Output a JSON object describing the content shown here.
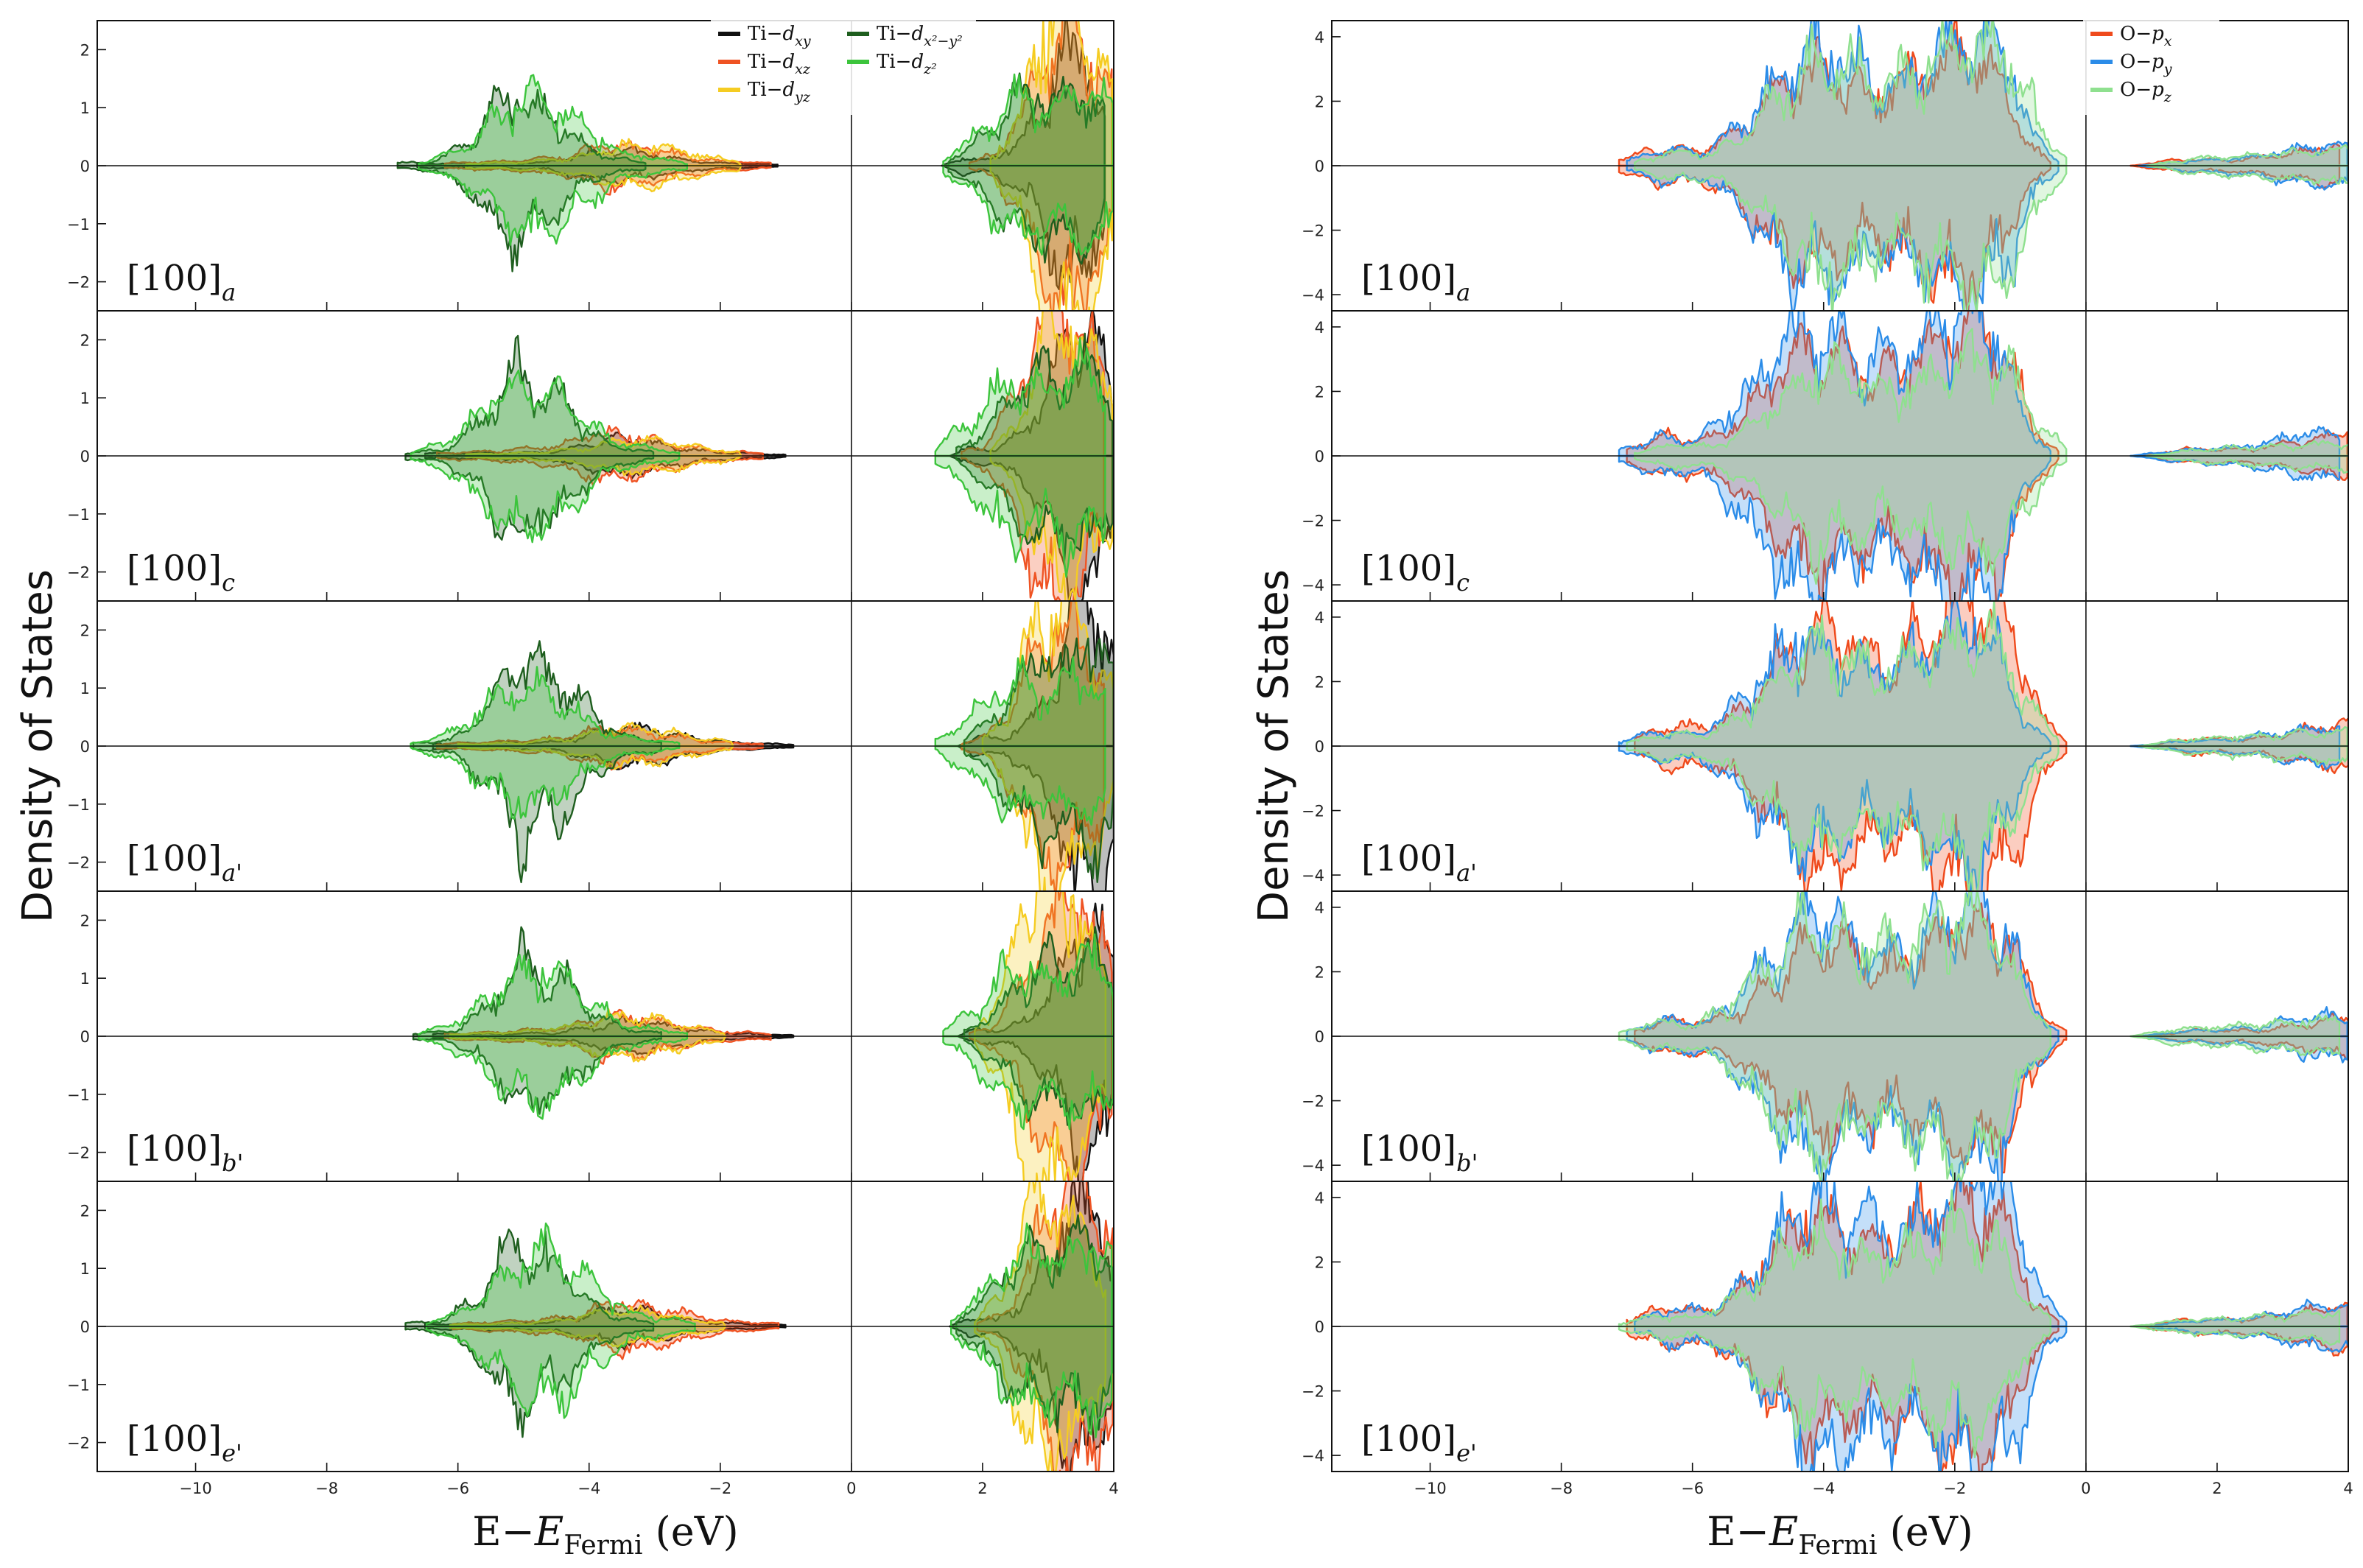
{
  "chart_data": [
    {
      "type": "area",
      "title": "",
      "xlabel": "E−E_Fermi (eV)",
      "ylabel": "Density of States",
      "xlim": [
        -11.5,
        4
      ],
      "ylim": [
        -2.5,
        2.5
      ],
      "xticks": [
        -10,
        -8,
        -6,
        -4,
        -2,
        0,
        2,
        4
      ],
      "yticks": [
        -2,
        -1,
        0,
        1,
        2
      ],
      "legend_position": "top-right",
      "panels": [
        {
          "label": "[100]",
          "sub": "a"
        },
        {
          "label": "[100]",
          "sub": "c"
        },
        {
          "label": "[100]",
          "sub": "a'"
        },
        {
          "label": "[100]",
          "sub": "b'"
        },
        {
          "label": "[100]",
          "sub": "e'"
        }
      ],
      "series": [
        {
          "name": "Ti−d",
          "sub": "xy",
          "color": "#111111",
          "valence": [
            [
              -6.5,
              0.04
            ],
            [
              -5.5,
              0.05
            ],
            [
              -4.6,
              0.06
            ],
            [
              -4.0,
              0.2
            ],
            [
              -3.5,
              0.3
            ],
            [
              -3.0,
              0.22
            ],
            [
              -2.5,
              0.12
            ],
            [
              -2.0,
              0.06
            ],
            [
              -1.0,
              0.02
            ]
          ],
          "conduction": [
            [
              1.5,
              0.0
            ],
            [
              1.8,
              0.15
            ],
            [
              2.2,
              0.1
            ],
            [
              2.6,
              0.4
            ],
            [
              3.0,
              0.9
            ],
            [
              3.3,
              2.2
            ],
            [
              3.7,
              2.0
            ],
            [
              4.0,
              1.0
            ]
          ]
        },
        {
          "name": "Ti−d",
          "sub": "xz",
          "color": "#ef5323",
          "valence": [
            [
              -6.2,
              0.04
            ],
            [
              -5.2,
              0.08
            ],
            [
              -4.3,
              0.15
            ],
            [
              -3.8,
              0.35
            ],
            [
              -3.2,
              0.3
            ],
            [
              -2.6,
              0.18
            ],
            [
              -2.0,
              0.08
            ],
            [
              -1.2,
              0.04
            ]
          ],
          "conduction": [
            [
              1.8,
              0.05
            ],
            [
              2.2,
              0.2
            ],
            [
              2.6,
              0.9
            ],
            [
              3.0,
              2.0
            ],
            [
              3.4,
              2.4
            ],
            [
              3.7,
              1.6
            ],
            [
              4.0,
              1.2
            ]
          ]
        },
        {
          "name": "Ti−d",
          "sub": "yz",
          "color": "#f5cc22",
          "valence": [
            [
              -6.0,
              0.03
            ],
            [
              -5.0,
              0.06
            ],
            [
              -4.2,
              0.14
            ],
            [
              -3.6,
              0.3
            ],
            [
              -3.0,
              0.28
            ],
            [
              -2.4,
              0.15
            ],
            [
              -1.8,
              0.06
            ]
          ],
          "conduction": [
            [
              2.0,
              0.1
            ],
            [
              2.4,
              0.6
            ],
            [
              2.8,
              2.2
            ],
            [
              3.2,
              2.5
            ],
            [
              3.6,
              1.8
            ],
            [
              4.0,
              0.9
            ]
          ]
        },
        {
          "name": "Ti−d",
          "sub": "x²−y²",
          "color": "#1e5e1e",
          "valence": [
            [
              -6.8,
              0.05
            ],
            [
              -6.2,
              0.1
            ],
            [
              -5.6,
              0.6
            ],
            [
              -5.1,
              1.5
            ],
            [
              -4.8,
              1.0
            ],
            [
              -4.5,
              1.1
            ],
            [
              -4.1,
              0.5
            ],
            [
              -3.6,
              0.15
            ],
            [
              -3.0,
              0.06
            ]
          ],
          "conduction": [
            [
              1.6,
              0.1
            ],
            [
              2.0,
              0.4
            ],
            [
              2.4,
              0.9
            ],
            [
              2.8,
              1.4
            ],
            [
              3.2,
              1.2
            ],
            [
              3.6,
              1.6
            ],
            [
              4.0,
              0.9
            ]
          ]
        },
        {
          "name": "Ti−d",
          "sub": "z²",
          "color": "#3cc43c",
          "valence": [
            [
              -6.6,
              0.04
            ],
            [
              -5.9,
              0.3
            ],
            [
              -5.4,
              0.8
            ],
            [
              -4.9,
              1.1
            ],
            [
              -4.5,
              1.0
            ],
            [
              -4.0,
              0.6
            ],
            [
              -3.5,
              0.2
            ],
            [
              -2.5,
              0.05
            ]
          ],
          "conduction": [
            [
              1.4,
              0.1
            ],
            [
              1.9,
              0.5
            ],
            [
              2.3,
              1.0
            ],
            [
              2.7,
              1.2
            ],
            [
              3.1,
              0.9
            ],
            [
              3.5,
              1.3
            ],
            [
              4.0,
              1.0
            ]
          ]
        }
      ]
    },
    {
      "type": "area",
      "title": "",
      "xlabel": "E−E_Fermi (eV)",
      "ylabel": "Density of States",
      "xlim": [
        -11.5,
        4
      ],
      "ylim": [
        -4.5,
        4.5
      ],
      "xticks": [
        -10,
        -8,
        -6,
        -4,
        -2,
        0,
        2,
        4
      ],
      "yticks": [
        -4,
        -2,
        0,
        2,
        4
      ],
      "legend_position": "top-right",
      "panels": [
        {
          "label": "[100]",
          "sub": "a"
        },
        {
          "label": "[100]",
          "sub": "c"
        },
        {
          "label": "[100]",
          "sub": "a'"
        },
        {
          "label": "[100]",
          "sub": "b'"
        },
        {
          "label": "[100]",
          "sub": "e'"
        }
      ],
      "series": [
        {
          "name": "O−p",
          "sub": "x",
          "color": "#ef4a1c",
          "valence": [
            [
              -7.0,
              0.2
            ],
            [
              -6.4,
              0.6
            ],
            [
              -5.8,
              0.5
            ],
            [
              -5.3,
              1.0
            ],
            [
              -4.7,
              2.4
            ],
            [
              -4.2,
              3.4
            ],
            [
              -3.7,
              3.0
            ],
            [
              -3.2,
              2.4
            ],
            [
              -2.7,
              2.8
            ],
            [
              -2.2,
              3.6
            ],
            [
              -1.7,
              4.0
            ],
            [
              -1.2,
              3.0
            ],
            [
              -0.8,
              0.8
            ],
            [
              -0.4,
              0.1
            ]
          ],
          "conduction": [
            [
              0.8,
              0.0
            ],
            [
              1.5,
              0.2
            ],
            [
              2.5,
              0.2
            ],
            [
              3.5,
              0.5
            ],
            [
              4.0,
              0.7
            ]
          ]
        },
        {
          "name": "O−p",
          "sub": "y",
          "color": "#2b8ce8",
          "valence": [
            [
              -7.0,
              0.15
            ],
            [
              -6.4,
              0.5
            ],
            [
              -5.8,
              0.4
            ],
            [
              -5.3,
              1.2
            ],
            [
              -4.7,
              2.6
            ],
            [
              -4.2,
              3.8
            ],
            [
              -3.7,
              3.1
            ],
            [
              -3.2,
              2.6
            ],
            [
              -2.7,
              2.7
            ],
            [
              -2.2,
              3.4
            ],
            [
              -1.7,
              4.2
            ],
            [
              -1.2,
              3.2
            ],
            [
              -0.8,
              0.9
            ],
            [
              -0.4,
              0.1
            ]
          ],
          "conduction": [
            [
              0.8,
              0.0
            ],
            [
              1.5,
              0.15
            ],
            [
              2.5,
              0.25
            ],
            [
              3.5,
              0.6
            ],
            [
              4.0,
              0.6
            ]
          ]
        },
        {
          "name": "O−p",
          "sub": "z",
          "color": "#8fe08f",
          "valence": [
            [
              -7.0,
              0.1
            ],
            [
              -6.4,
              0.4
            ],
            [
              -5.8,
              0.3
            ],
            [
              -5.3,
              0.9
            ],
            [
              -4.7,
              2.0
            ],
            [
              -4.2,
              3.0
            ],
            [
              -3.7,
              2.7
            ],
            [
              -3.2,
              2.2
            ],
            [
              -2.7,
              2.5
            ],
            [
              -2.2,
              3.0
            ],
            [
              -1.7,
              3.4
            ],
            [
              -1.2,
              2.6
            ],
            [
              -0.8,
              1.0
            ],
            [
              -0.4,
              0.2
            ]
          ],
          "conduction": [
            [
              0.8,
              0.0
            ],
            [
              1.5,
              0.2
            ],
            [
              2.5,
              0.3
            ],
            [
              3.5,
              0.4
            ],
            [
              4.0,
              0.5
            ]
          ]
        }
      ]
    }
  ]
}
